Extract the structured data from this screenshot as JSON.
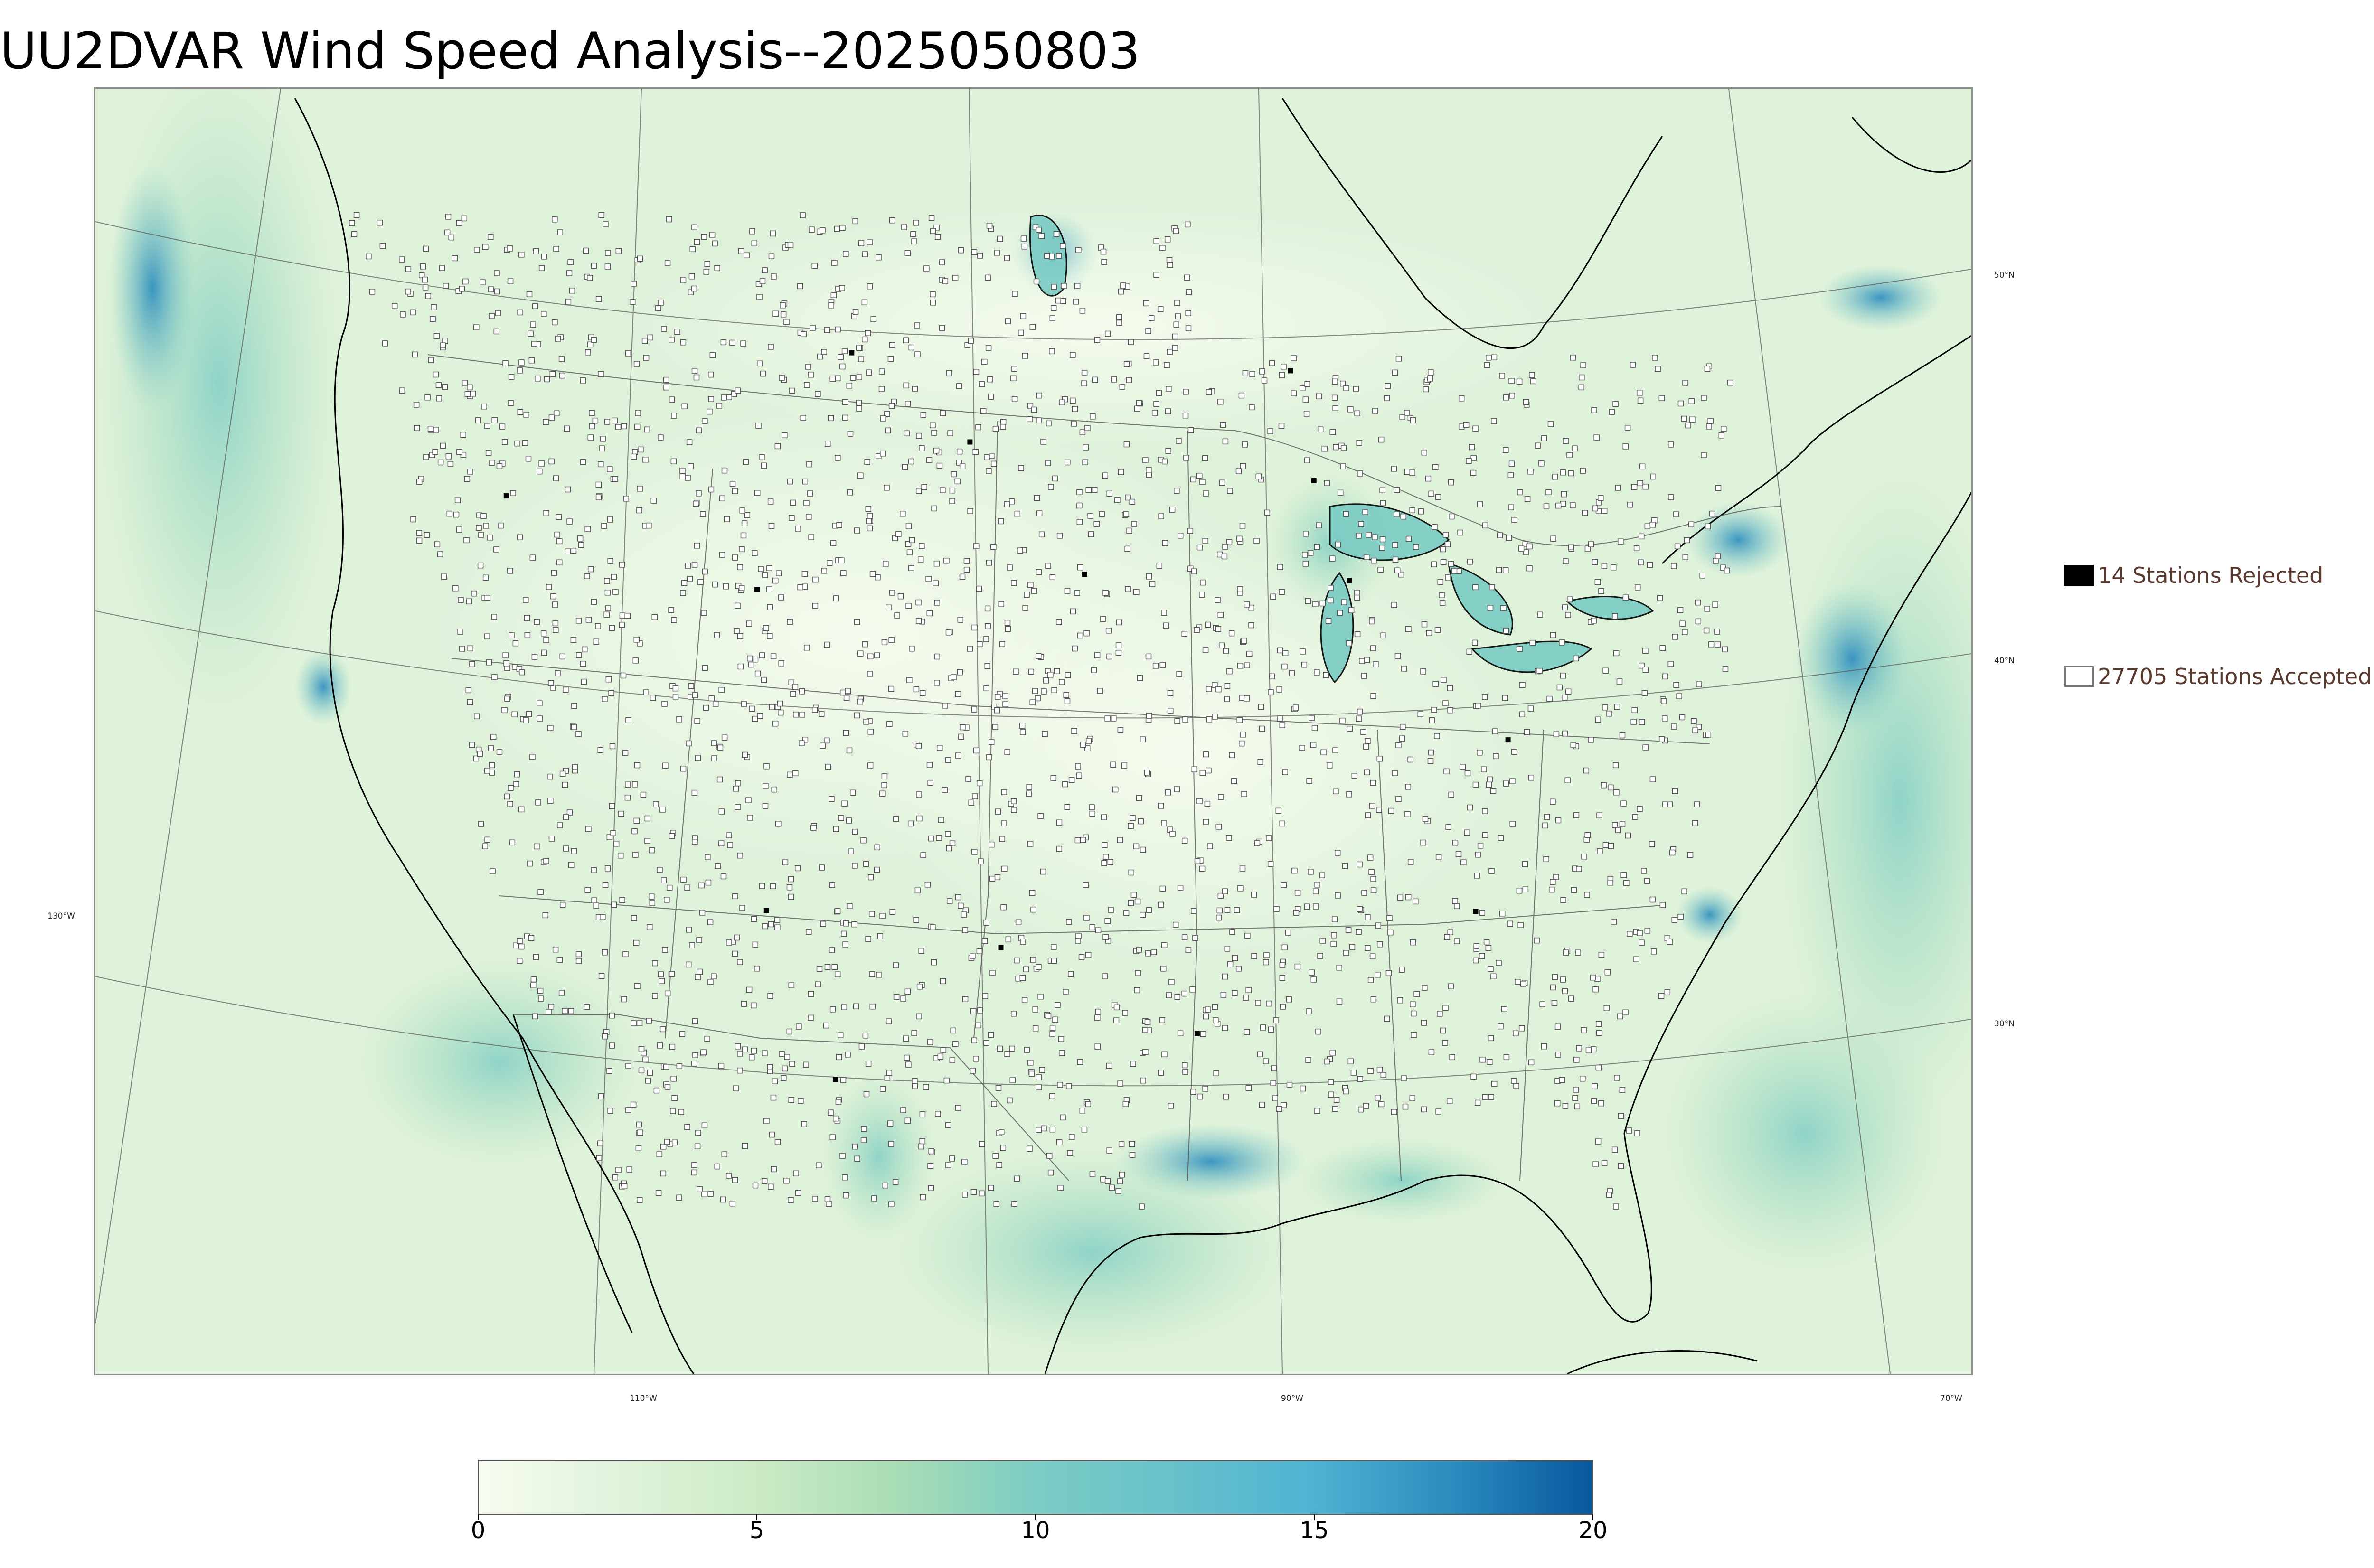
{
  "title": "UU2DVAR Wind Speed Analysis--2025050803",
  "map": {
    "projection": "lambert-conformal",
    "colormap": "GnBu",
    "coastline_color": "#000000",
    "border_color": "#555555",
    "station_accepted_color": "#ffffff",
    "station_rejected_color": "#000000",
    "graticule_color": "#555555",
    "lat_labels": [
      "50°N",
      "40°N",
      "30°N"
    ],
    "lon_labels": [
      "130°W",
      "110°W",
      "90°W",
      "70°W"
    ]
  },
  "legend": {
    "rejected_label": "14 Stations Rejected",
    "accepted_label": "27705 Stations Accepted"
  },
  "colorbar": {
    "min": 0,
    "max": 20,
    "tick_labels": [
      "0",
      "5",
      "10",
      "15",
      "20"
    ],
    "colors": [
      "#f7fcf0",
      "#e0f3db",
      "#ccebc5",
      "#a8ddb5",
      "#7bccc4",
      "#67c1cb",
      "#4eb3d3",
      "#2b8cbe",
      "#08589e"
    ]
  }
}
